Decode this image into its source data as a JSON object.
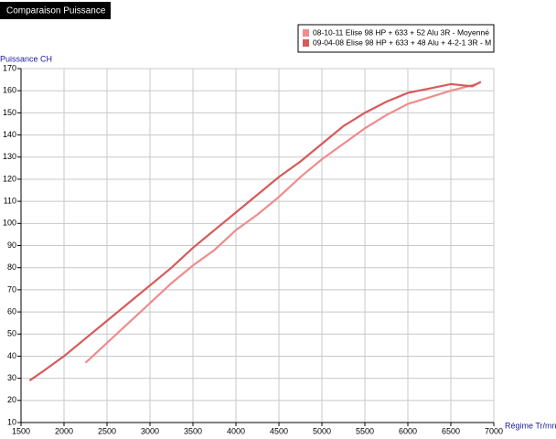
{
  "chart_data": {
    "type": "line",
    "title": "Comparaison Puissance",
    "y_label": "Puissance CH",
    "x_label": "Régime Tr/mn",
    "xlim": [
      1500,
      7000
    ],
    "xticks": [
      1500,
      2000,
      2500,
      3000,
      3500,
      4000,
      4500,
      5000,
      5500,
      6000,
      6500,
      7000
    ],
    "ylim": [
      10,
      170
    ],
    "yticks": [
      10,
      20,
      30,
      40,
      50,
      60,
      70,
      80,
      90,
      100,
      110,
      120,
      130,
      140,
      150,
      160,
      170
    ],
    "grid": true,
    "legend": "top-right",
    "series": [
      {
        "name": "08-10-11 Elise 98 HP + 633 + 52 Alu 3R - Moyenné",
        "color": "#f08c8c",
        "x": [
          2250,
          2500,
          2750,
          3000,
          3250,
          3500,
          3750,
          4000,
          4250,
          4500,
          4750,
          5000,
          5250,
          5500,
          5750,
          6000,
          6250,
          6500,
          6800
        ],
        "values": [
          37,
          46,
          55,
          64,
          73,
          81,
          88,
          97,
          104,
          112,
          121,
          129,
          136,
          143,
          149,
          154,
          157,
          160,
          163
        ]
      },
      {
        "name": "09-04-08 Elise 98 HP + 633 + 48 Alu + 4-2-1 3R - M",
        "color": "#d65a5a",
        "x": [
          1600,
          1750,
          2000,
          2250,
          2500,
          2750,
          3000,
          3250,
          3500,
          3750,
          4000,
          4250,
          4500,
          4750,
          5000,
          5250,
          5500,
          5750,
          6000,
          6250,
          6500,
          6750,
          6850
        ],
        "values": [
          29,
          33,
          40,
          48,
          56,
          64,
          72,
          80,
          89,
          97,
          105,
          113,
          121,
          128,
          136,
          144,
          150,
          155,
          159,
          161,
          163,
          162,
          164
        ]
      }
    ]
  }
}
